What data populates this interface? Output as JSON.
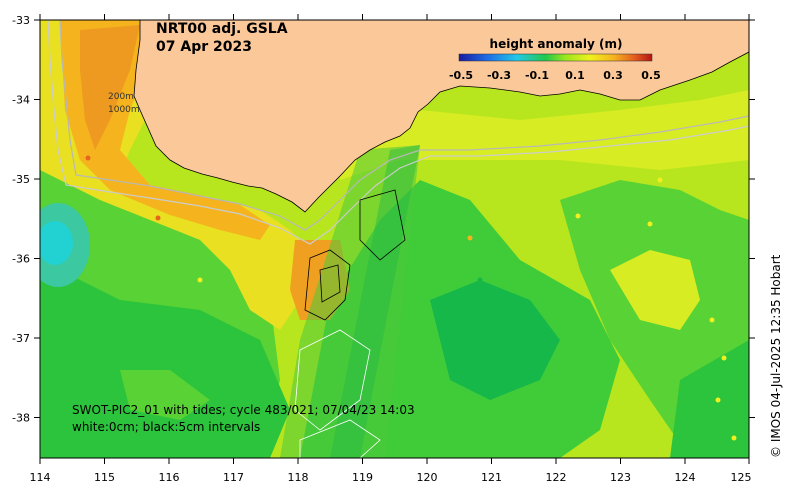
{
  "title": {
    "line1": "NRT00 adj. GSLA",
    "line2": "07 Apr 2023"
  },
  "legend": {
    "title": "height anomaly (m)",
    "ticks": [
      "-0.5",
      "-0.3",
      "-0.1",
      "0.1",
      "0.3",
      "0.5"
    ],
    "colors": [
      "#1a1aa0",
      "#1e6ee6",
      "#22c8e6",
      "#22c84a",
      "#9be61e",
      "#f0f01e",
      "#f5b41e",
      "#e6641e",
      "#b41414"
    ]
  },
  "axes": {
    "x_ticks": [
      "114",
      "115",
      "116",
      "117",
      "118",
      "119",
      "120",
      "121",
      "122",
      "123",
      "124",
      "125"
    ],
    "y_ticks": [
      "-33",
      "-34",
      "-35",
      "-36",
      "-37",
      "-38"
    ]
  },
  "isobaths": {
    "label_200": "200m",
    "label_1000": "1000m"
  },
  "annotation": {
    "line1": "SWOT-PIC2_01 with tides; cycle 483/021; 07/04/23 14:03",
    "line2": "white:0cm; black:5cm intervals"
  },
  "credit": "© IMOS 04-Jul-2025 12:35 Hobart",
  "colors": {
    "land": "#fbc89a",
    "ocean_base": "#9be61e",
    "green": "#22c84a",
    "yellow": "#f0f01e",
    "orange": "#f5b41e",
    "cyan": "#22c8e6"
  }
}
